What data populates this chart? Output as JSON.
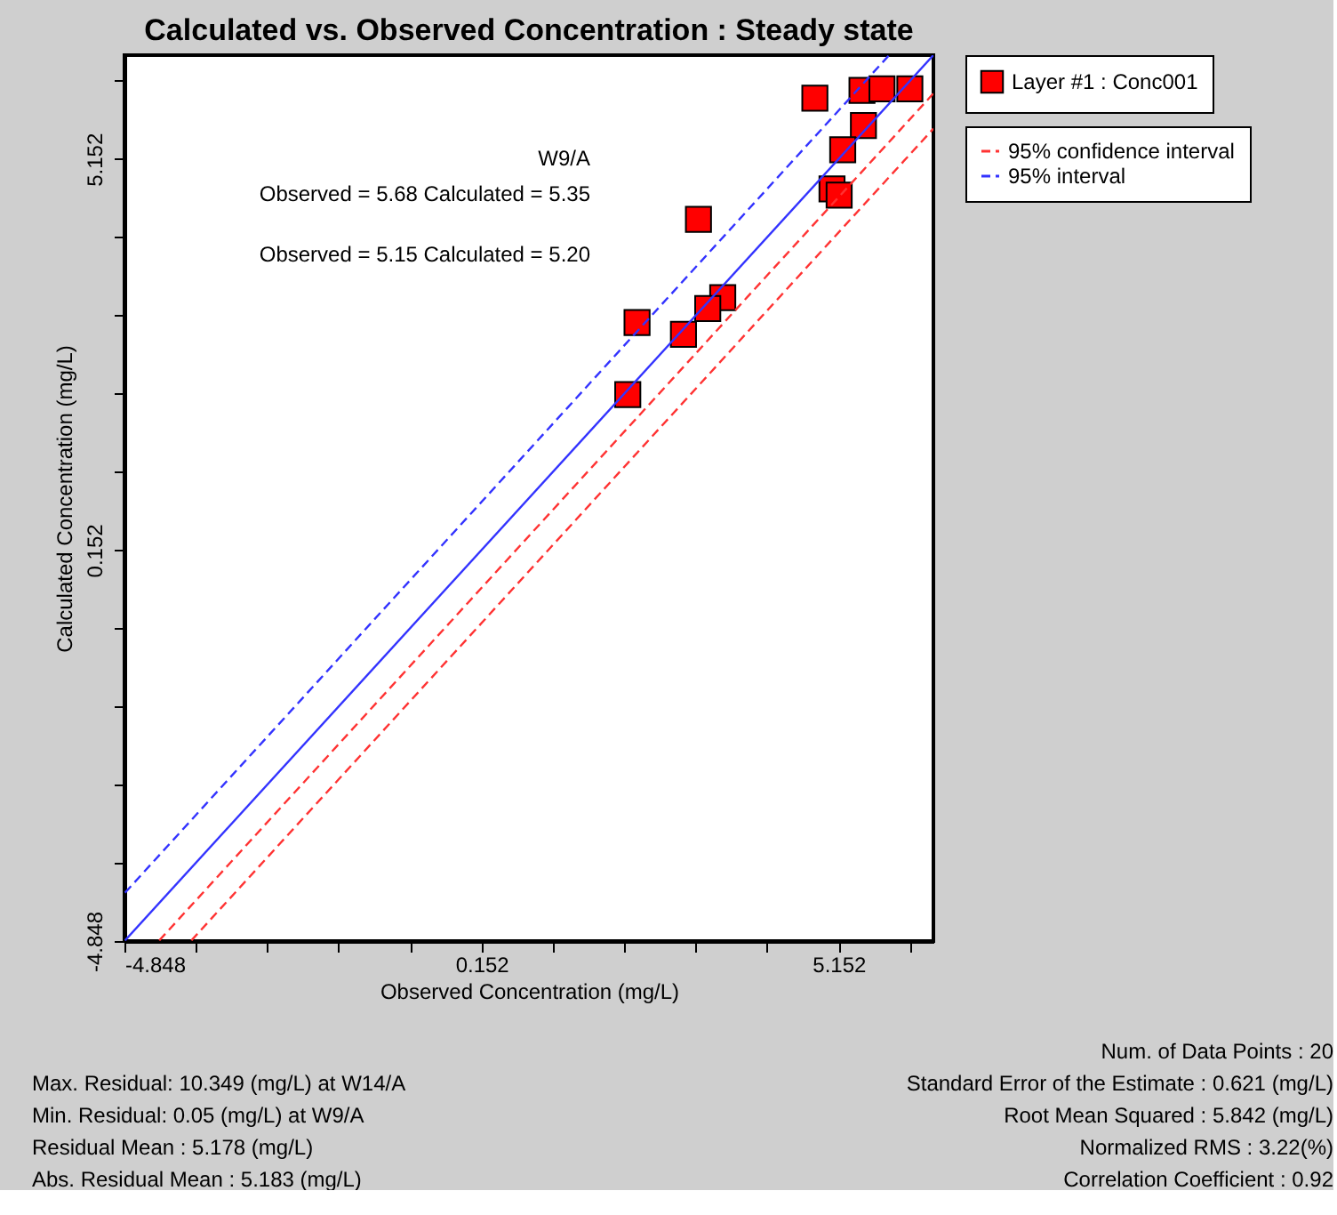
{
  "chart_data": {
    "type": "scatter",
    "title": "Calculated vs. Observed Concentration : Steady state",
    "xlabel": "Observed Concentration (mg/L)",
    "ylabel": "Calculated Concentration (mg/L)",
    "xlim": [
      -4.848,
      6.48
    ],
    "ylim": [
      -4.848,
      6.48
    ],
    "xticks": [
      -4.848,
      {
        "value": -3.848,
        "label": null
      },
      {
        "value": -2.848,
        "label": null
      },
      {
        "value": -1.848,
        "label": null
      },
      {
        "value": -0.848,
        "label": null
      },
      0.152,
      {
        "value": 1.152,
        "label": null
      },
      {
        "value": 2.152,
        "label": null
      },
      {
        "value": 3.152,
        "label": null
      },
      {
        "value": 4.152,
        "label": null
      },
      5.152,
      {
        "value": 6.152,
        "label": null
      }
    ],
    "yticks": [
      -4.848,
      {
        "value": -3.848,
        "label": null
      },
      {
        "value": -2.848,
        "label": null
      },
      {
        "value": -1.848,
        "label": null
      },
      {
        "value": -0.848,
        "label": null
      },
      0.152,
      {
        "value": 1.152,
        "label": null
      },
      {
        "value": 2.152,
        "label": null
      },
      {
        "value": 3.152,
        "label": null
      },
      {
        "value": 4.152,
        "label": null
      },
      5.152,
      {
        "value": 6.152,
        "label": null
      }
    ],
    "grid": false,
    "legend": "top right",
    "series": [
      {
        "name": "Layer #1 : Conc001",
        "marker": "square",
        "color": "#ff0000",
        "x": [
          4.82,
          5.48,
          5.76,
          6.15,
          5.5,
          5.21,
          5.06,
          5.16,
          3.19,
          3.53,
          3.32,
          2.33,
          2.98,
          2.2
        ],
        "values": [
          5.93,
          6.03,
          6.05,
          6.05,
          5.58,
          5.27,
          4.77,
          4.69,
          4.38,
          3.38,
          3.24,
          3.06,
          2.91,
          2.14
        ]
      },
      {
        "type": "line",
        "color": "#3333ff",
        "line_style": "solid",
        "x": [
          -4.84,
          6.48
        ],
        "values": [
          -4.84,
          6.48
        ]
      },
      {
        "name": "95% confidence interval",
        "type": "line",
        "color": "#ff3333",
        "line_style": "dashed",
        "x": [
          -4.36,
          6.48
        ],
        "values": [
          -4.84,
          5.99
        ]
      },
      {
        "type": "line",
        "color": "#ff3333",
        "line_style": "dashed",
        "x": [
          -3.91,
          6.48
        ],
        "values": [
          -4.84,
          5.54
        ]
      },
      {
        "name": "95% interval",
        "type": "line",
        "color": "#3333ff",
        "line_style": "dashed",
        "x": [
          -4.84,
          5.86
        ],
        "values": [
          -4.23,
          6.48
        ]
      }
    ],
    "annotations": [
      "W9/A\nObserved = 5.68 Calculated = 5.35",
      "Observed = 5.15 Calculated = 5.20",
      "Max. Residual:  10.349 (mg/L) at W14/A",
      "Min. Residual: 0.05 (mg/L) at W9/A",
      "Residual Mean :  5.178 (mg/L)",
      "Abs. Residual Mean : 5.183 (mg/L)",
      "Num. of Data Points : 20",
      "Standard Error of the Estimate : 0.621 (mg/L)",
      "Root Mean Squared : 5.842 (mg/L)",
      "Normalized RMS : 3.22(%)",
      "Correlation Coefficient : 0.92"
    ]
  }
}
